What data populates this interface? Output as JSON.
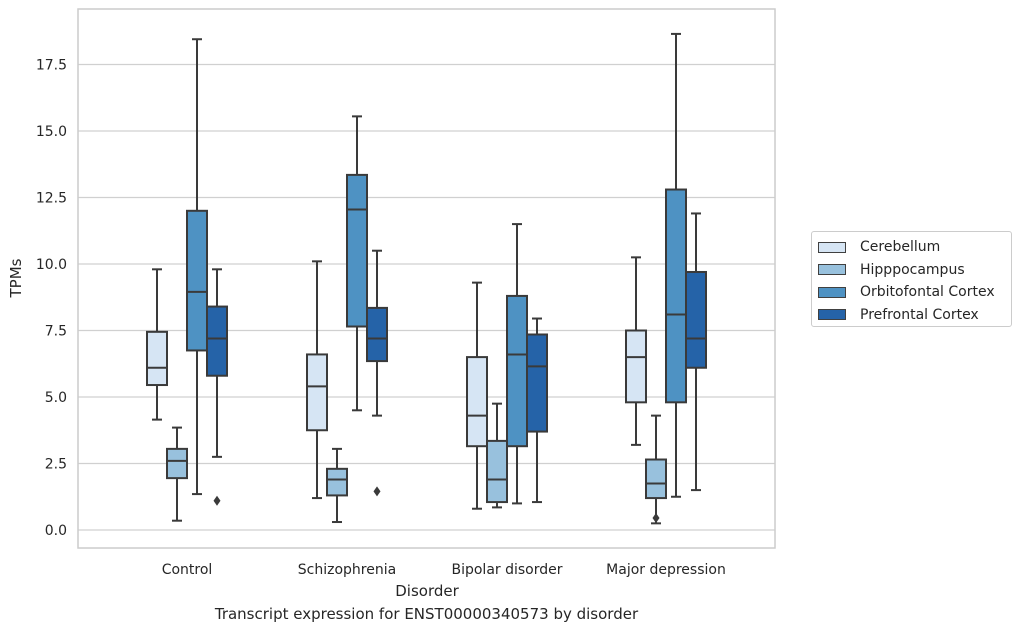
{
  "caption": "Transcript expression for ENST00000340573 by disorder",
  "chart_data": {
    "type": "box",
    "title": "",
    "xlabel": "Disorder",
    "ylabel": "TPMs",
    "ylim": [
      -0.6,
      19.6
    ],
    "yticks": [
      "0.0",
      "2.5",
      "5.0",
      "7.5",
      "10.0",
      "12.5",
      "15.0",
      "17.5"
    ],
    "grid": "horizontal",
    "legend_position": "right",
    "categories": [
      "Control",
      "Schizophrenia",
      "Bipolar disorder",
      "Major depression"
    ],
    "series": [
      {
        "name": "Cerebellum",
        "color": "#d6e5f4",
        "boxes": [
          {
            "whislo": 4.15,
            "q1": 5.45,
            "med": 6.1,
            "q3": 7.45,
            "whishi": 9.8,
            "fliers": []
          },
          {
            "whislo": 1.2,
            "q1": 3.75,
            "med": 5.4,
            "q3": 6.6,
            "whishi": 10.1,
            "fliers": []
          },
          {
            "whislo": 0.8,
            "q1": 3.15,
            "med": 4.3,
            "q3": 6.5,
            "whishi": 9.3,
            "fliers": []
          },
          {
            "whislo": 3.2,
            "q1": 4.8,
            "med": 6.5,
            "q3": 7.5,
            "whishi": 10.25,
            "fliers": []
          }
        ]
      },
      {
        "name": "Hipppocampus",
        "color": "#98c1dd",
        "boxes": [
          {
            "whislo": 0.35,
            "q1": 1.95,
            "med": 2.6,
            "q3": 3.05,
            "whishi": 3.85,
            "fliers": []
          },
          {
            "whislo": 0.3,
            "q1": 1.3,
            "med": 1.9,
            "q3": 2.3,
            "whishi": 3.05,
            "fliers": []
          },
          {
            "whislo": 0.85,
            "q1": 1.05,
            "med": 1.9,
            "q3": 3.35,
            "whishi": 4.75,
            "fliers": []
          },
          {
            "whislo": 0.25,
            "q1": 1.2,
            "med": 1.75,
            "q3": 2.65,
            "whishi": 4.3,
            "fliers": [
              0.45
            ]
          }
        ]
      },
      {
        "name": "Orbitofontal Cortex",
        "color": "#4e92c3",
        "boxes": [
          {
            "whislo": 1.35,
            "q1": 6.75,
            "med": 8.95,
            "q3": 12.0,
            "whishi": 18.45,
            "fliers": []
          },
          {
            "whislo": 4.5,
            "q1": 7.65,
            "med": 12.05,
            "q3": 13.35,
            "whishi": 15.55,
            "fliers": []
          },
          {
            "whislo": 1.0,
            "q1": 3.15,
            "med": 6.6,
            "q3": 8.8,
            "whishi": 11.5,
            "fliers": []
          },
          {
            "whislo": 1.25,
            "q1": 4.8,
            "med": 8.1,
            "q3": 12.8,
            "whishi": 18.65,
            "fliers": []
          }
        ]
      },
      {
        "name": "Prefrontal Cortex",
        "color": "#2563a8",
        "boxes": [
          {
            "whislo": 2.75,
            "q1": 5.8,
            "med": 7.2,
            "q3": 8.4,
            "whishi": 9.8,
            "fliers": [
              1.1
            ]
          },
          {
            "whislo": 4.3,
            "q1": 6.35,
            "med": 7.2,
            "q3": 8.35,
            "whishi": 10.5,
            "fliers": [
              1.45
            ]
          },
          {
            "whislo": 1.05,
            "q1": 3.7,
            "med": 6.15,
            "q3": 7.35,
            "whishi": 7.95,
            "fliers": []
          },
          {
            "whislo": 1.5,
            "q1": 6.1,
            "med": 7.2,
            "q3": 9.7,
            "whishi": 11.9,
            "fliers": []
          }
        ]
      }
    ]
  }
}
